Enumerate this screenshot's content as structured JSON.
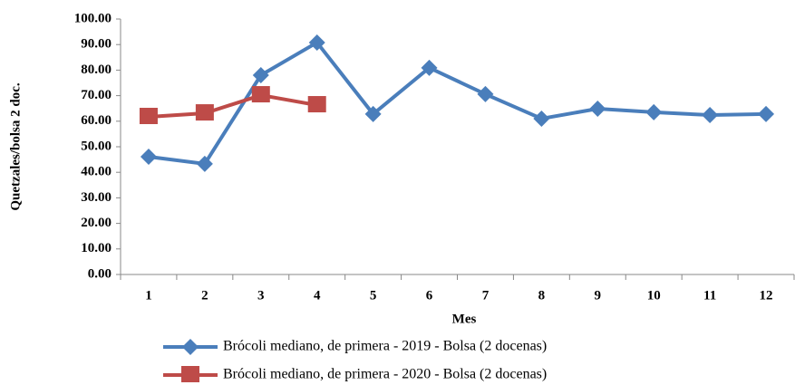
{
  "chart_data": {
    "type": "line",
    "x_label": "Mes",
    "y_label": "Quetzales/bolsa 2 doc.",
    "categories": [
      "1",
      "2",
      "3",
      "4",
      "5",
      "6",
      "7",
      "8",
      "9",
      "10",
      "11",
      "12"
    ],
    "series": [
      {
        "name": "Brócoli mediano, de primera - 2019 - Bolsa (2 docenas)",
        "color": "#4a7ebb",
        "marker": "diamond",
        "values": [
          46.1,
          43.3,
          78,
          90.8,
          62.8,
          80.9,
          70.6,
          61,
          64.9,
          63.5,
          62.4,
          62.8
        ]
      },
      {
        "name": "Brócoli mediano, de primera - 2020 - Bolsa (2 docenas)",
        "color": "#be4b48",
        "marker": "square",
        "values": [
          61.7,
          63.1,
          70.2,
          66.3,
          null,
          null,
          null,
          null,
          null,
          null,
          null,
          null
        ]
      }
    ],
    "ylim": [
      0,
      100
    ],
    "yticks": [
      {
        "value": 0,
        "label": "0.00"
      },
      {
        "value": 10,
        "label": "10.00"
      },
      {
        "value": 20,
        "label": "20.00"
      },
      {
        "value": 30,
        "label": "30.00"
      },
      {
        "value": 40,
        "label": "40.00"
      },
      {
        "value": 50,
        "label": "50.00"
      },
      {
        "value": 60,
        "label": "60.00"
      },
      {
        "value": 70,
        "label": "70.00"
      },
      {
        "value": 80,
        "label": "80.00"
      },
      {
        "value": 90,
        "label": "90.00"
      },
      {
        "value": 100,
        "label": "100.00"
      }
    ],
    "legend": "bottom"
  }
}
